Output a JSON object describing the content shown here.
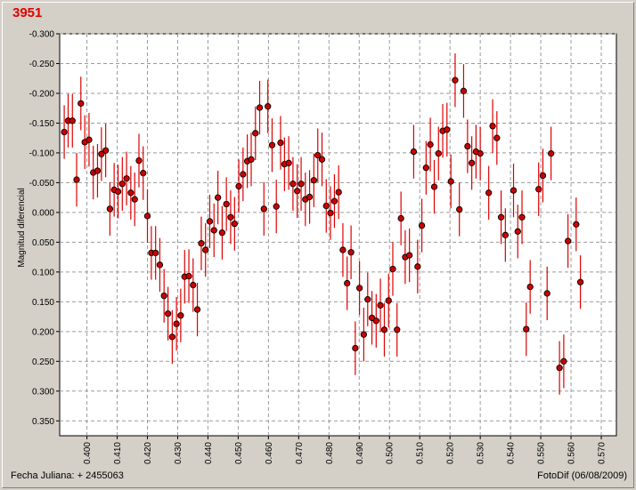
{
  "window": {
    "title": "3951",
    "footer_left": "Fecha Juliana:  + 2455063",
    "footer_right": "FotoDif (06/08/2009)"
  },
  "chart_data": {
    "type": "scatter",
    "title": "3951",
    "xlabel": "",
    "ylabel": "Magnitud diferencial",
    "xlim": [
      0.391,
      0.575
    ],
    "ylim": [
      -0.3,
      0.375
    ],
    "y_inverted": true,
    "grid": true,
    "x_ticks": [
      "0.400",
      "0.410",
      "0.420",
      "0.430",
      "0.440",
      "0.450",
      "0.460",
      "0.470",
      "0.480",
      "0.490",
      "0.500",
      "0.510",
      "0.520",
      "0.530",
      "0.540",
      "0.550",
      "0.560",
      "0.570"
    ],
    "y_ticks": [
      "-0.300",
      "-0.250",
      "-0.200",
      "-0.150",
      "-0.100",
      "-0.050",
      "0.000",
      "0.050",
      "0.100",
      "0.150",
      "0.200",
      "0.250",
      "0.300",
      "0.350"
    ],
    "marker_color": "#cc0000",
    "errorbar_color": "#dd0000",
    "error": 0.045,
    "points": [
      [
        0.3925,
        -0.135
      ],
      [
        0.3938,
        -0.154
      ],
      [
        0.3952,
        -0.154
      ],
      [
        0.3966,
        -0.055
      ],
      [
        0.398,
        -0.183
      ],
      [
        0.3993,
        -0.118
      ],
      [
        0.4007,
        -0.122
      ],
      [
        0.4021,
        -0.067
      ],
      [
        0.4035,
        -0.07
      ],
      [
        0.4048,
        -0.098
      ],
      [
        0.4062,
        -0.104
      ],
      [
        0.4076,
        -0.006
      ],
      [
        0.409,
        -0.038
      ],
      [
        0.4103,
        -0.035
      ],
      [
        0.4117,
        -0.048
      ],
      [
        0.4131,
        -0.057
      ],
      [
        0.4145,
        -0.033
      ],
      [
        0.4158,
        -0.022
      ],
      [
        0.4172,
        -0.087
      ],
      [
        0.4186,
        -0.066
      ],
      [
        0.42,
        0.006
      ],
      [
        0.4213,
        0.068
      ],
      [
        0.4227,
        0.068
      ],
      [
        0.4241,
        0.088
      ],
      [
        0.4255,
        0.14
      ],
      [
        0.4268,
        0.17
      ],
      [
        0.4282,
        0.209
      ],
      [
        0.4296,
        0.187
      ],
      [
        0.431,
        0.173
      ],
      [
        0.4323,
        0.108
      ],
      [
        0.4337,
        0.107
      ],
      [
        0.4351,
        0.122
      ],
      [
        0.4365,
        0.163
      ],
      [
        0.4378,
        0.052
      ],
      [
        0.4392,
        0.063
      ],
      [
        0.4406,
        0.015
      ],
      [
        0.442,
        0.03
      ],
      [
        0.4433,
        -0.025
      ],
      [
        0.4447,
        0.034
      ],
      [
        0.4461,
        -0.014
      ],
      [
        0.4475,
        0.008
      ],
      [
        0.4488,
        0.019
      ],
      [
        0.4502,
        -0.044
      ],
      [
        0.4516,
        -0.064
      ],
      [
        0.453,
        -0.086
      ],
      [
        0.4543,
        -0.089
      ],
      [
        0.4557,
        -0.133
      ],
      [
        0.4571,
        -0.176
      ],
      [
        0.4585,
        -0.006
      ],
      [
        0.4598,
        -0.178
      ],
      [
        0.4612,
        -0.113
      ],
      [
        0.4626,
        -0.01
      ],
      [
        0.464,
        -0.117
      ],
      [
        0.4653,
        -0.081
      ],
      [
        0.4667,
        -0.083
      ],
      [
        0.4681,
        -0.048
      ],
      [
        0.4695,
        -0.036
      ],
      [
        0.4708,
        -0.048
      ],
      [
        0.4722,
        -0.022
      ],
      [
        0.4736,
        -0.026
      ],
      [
        0.475,
        -0.054
      ],
      [
        0.4763,
        -0.096
      ],
      [
        0.4777,
        -0.089
      ],
      [
        0.4791,
        -0.011
      ],
      [
        0.4805,
        0.001
      ],
      [
        0.4818,
        -0.019
      ],
      [
        0.4832,
        -0.034
      ],
      [
        0.4846,
        0.063
      ],
      [
        0.486,
        0.119
      ],
      [
        0.4873,
        0.067
      ],
      [
        0.4887,
        0.228
      ],
      [
        0.4901,
        0.127
      ],
      [
        0.4915,
        0.205
      ],
      [
        0.4928,
        0.146
      ],
      [
        0.4942,
        0.177
      ],
      [
        0.4956,
        0.182
      ],
      [
        0.497,
        0.156
      ],
      [
        0.4983,
        0.197
      ],
      [
        0.4997,
        0.148
      ],
      [
        0.5011,
        0.095
      ],
      [
        0.5025,
        0.197
      ],
      [
        0.5038,
        0.01
      ],
      [
        0.5052,
        0.075
      ],
      [
        0.5066,
        0.072
      ],
      [
        0.508,
        -0.102
      ],
      [
        0.5093,
        0.091
      ],
      [
        0.5107,
        0.022
      ],
      [
        0.5121,
        -0.075
      ],
      [
        0.5135,
        -0.114
      ],
      [
        0.5148,
        -0.043
      ],
      [
        0.5162,
        -0.099
      ],
      [
        0.5176,
        -0.137
      ],
      [
        0.519,
        -0.139
      ],
      [
        0.5203,
        -0.052
      ],
      [
        0.5217,
        -0.222
      ],
      [
        0.5231,
        -0.005
      ],
      [
        0.5245,
        -0.204
      ],
      [
        0.5258,
        -0.111
      ],
      [
        0.5272,
        -0.083
      ],
      [
        0.5286,
        -0.102
      ],
      [
        0.53,
        -0.099
      ],
      [
        0.5328,
        -0.033
      ],
      [
        0.5341,
        -0.145
      ],
      [
        0.5355,
        -0.125
      ],
      [
        0.5369,
        0.008
      ],
      [
        0.5383,
        0.038
      ],
      [
        0.541,
        -0.037
      ],
      [
        0.5424,
        0.032
      ],
      [
        0.5438,
        0.008
      ],
      [
        0.5452,
        0.196
      ],
      [
        0.5465,
        0.125
      ],
      [
        0.5493,
        -0.039
      ],
      [
        0.5507,
        -0.062
      ],
      [
        0.5521,
        0.136
      ],
      [
        0.5534,
        -0.099
      ],
      [
        0.5562,
        0.261
      ],
      [
        0.5576,
        0.25
      ],
      [
        0.559,
        0.048
      ],
      [
        0.5617,
        0.02
      ],
      [
        0.5631,
        0.117
      ]
    ]
  }
}
